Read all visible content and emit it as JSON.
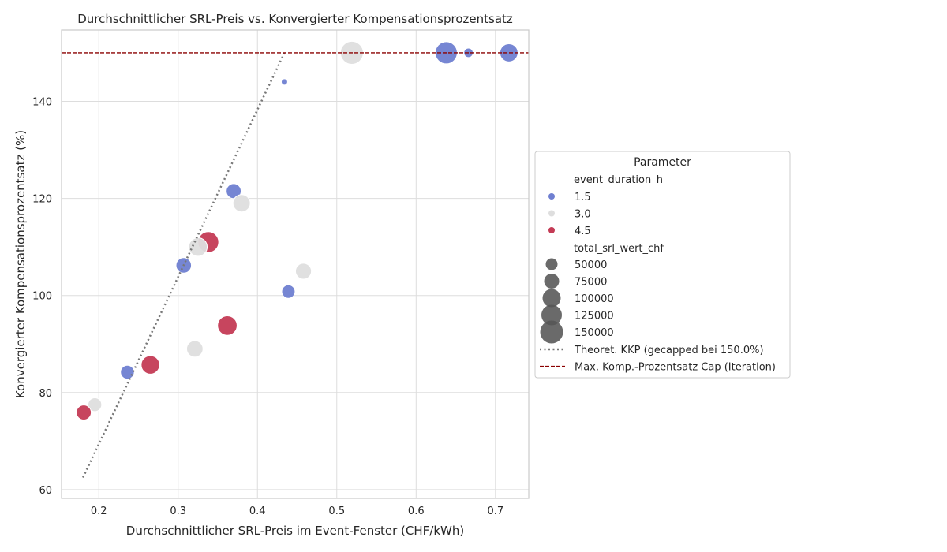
{
  "chart_data": {
    "type": "scatter",
    "title": "Durchschnittlicher SRL-Preis vs. Konvergierter Kompensationsprozentsatz",
    "xlabel": "Durchschnittlicher SRL-Preis im Event-Fenster (CHF/kWh)",
    "ylabel": "Konvergierter Kompensationsprozentsatz (%)",
    "xlim": [
      0.153,
      0.742
    ],
    "ylim": [
      58.2,
      154.7
    ],
    "xticks": [
      0.2,
      0.3,
      0.4,
      0.5,
      0.6,
      0.7
    ],
    "yticks": [
      60,
      80,
      100,
      120,
      140
    ],
    "grid": true,
    "legend": {
      "title": "Parameter",
      "placement": "outside right",
      "hue_title": "event_duration_h",
      "hue_entries": [
        {
          "label": "1.5",
          "color": "#6f7fd1"
        },
        {
          "label": "3.0",
          "color": "#dedede"
        },
        {
          "label": "4.5",
          "color": "#c43b55"
        }
      ],
      "size_title": "total_srl_wert_chf",
      "size_entries": [
        {
          "label": "50000",
          "value": 50000
        },
        {
          "label": "75000",
          "value": 75000
        },
        {
          "label": "100000",
          "value": 100000
        },
        {
          "label": "125000",
          "value": 125000
        },
        {
          "label": "150000",
          "value": 150000
        }
      ],
      "line_entries": [
        {
          "label": "Theoret. KKP (gecapped bei 150.0%)",
          "color": "#777777",
          "style": "dotted"
        },
        {
          "label": "Max. Komp.-Prozentsatz Cap (Iteration)",
          "color": "#8b0000",
          "style": "dashed"
        }
      ]
    },
    "points": [
      {
        "x": 0.434,
        "y": 144,
        "duration": "1.5",
        "value": 15000
      },
      {
        "x": 0.666,
        "y": 150,
        "duration": "1.5",
        "value": 20000
      },
      {
        "x": 0.638,
        "y": 150,
        "duration": "1.5",
        "value": 150000
      },
      {
        "x": 0.717,
        "y": 150,
        "duration": "1.5",
        "value": 90000
      },
      {
        "x": 0.519,
        "y": 150,
        "duration": "3.0",
        "value": 165000
      },
      {
        "x": 0.37,
        "y": 121.5,
        "duration": "1.5",
        "value": 55000
      },
      {
        "x": 0.38,
        "y": 119,
        "duration": "3.0",
        "value": 80000
      },
      {
        "x": 0.338,
        "y": 111,
        "duration": "4.5",
        "value": 130000
      },
      {
        "x": 0.325,
        "y": 110,
        "duration": "3.0",
        "value": 95000
      },
      {
        "x": 0.307,
        "y": 106.2,
        "duration": "1.5",
        "value": 60000
      },
      {
        "x": 0.458,
        "y": 105,
        "duration": "3.0",
        "value": 65000
      },
      {
        "x": 0.439,
        "y": 100.8,
        "duration": "1.5",
        "value": 42000
      },
      {
        "x": 0.362,
        "y": 93.8,
        "duration": "4.5",
        "value": 110000
      },
      {
        "x": 0.321,
        "y": 89,
        "duration": "3.0",
        "value": 70000
      },
      {
        "x": 0.265,
        "y": 85.7,
        "duration": "4.5",
        "value": 95000
      },
      {
        "x": 0.236,
        "y": 84.2,
        "duration": "1.5",
        "value": 45000
      },
      {
        "x": 0.195,
        "y": 77.5,
        "duration": "3.0",
        "value": 45000
      },
      {
        "x": 0.181,
        "y": 75.9,
        "duration": "4.5",
        "value": 55000
      }
    ],
    "lines": {
      "theoretical": {
        "x": [
          0.18,
          0.434
        ],
        "y": [
          62.5,
          150
        ]
      },
      "cap": {
        "y": 150
      }
    }
  }
}
